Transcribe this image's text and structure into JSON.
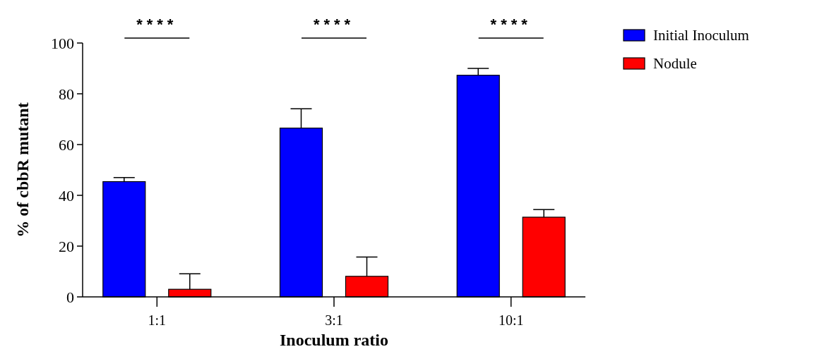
{
  "chart_data": {
    "type": "bar",
    "xlabel": "Inoculum ratio",
    "ylabel": "% of cbbR mutant",
    "categories": [
      "1:1",
      "3:1",
      "10:1"
    ],
    "series": [
      {
        "name": "Initial Inoculum",
        "color": "#0000ff",
        "values": [
          45.4,
          66.5,
          87.3
        ],
        "errors": [
          [
            45.4,
            47.0
          ],
          [
            66.5,
            74.1
          ],
          [
            87.3,
            90.0
          ]
        ]
      },
      {
        "name": "Nodule",
        "color": "#ff0000",
        "values": [
          3.0,
          8.1,
          31.4
        ],
        "errors": [
          [
            3.0,
            9.1
          ],
          [
            8.1,
            15.7
          ],
          [
            31.4,
            34.4
          ]
        ]
      }
    ],
    "ylim": [
      0,
      100
    ],
    "yticks": [
      0,
      20,
      40,
      60,
      80,
      100
    ],
    "legend": "top right",
    "annotations": [
      "****",
      "****",
      "****"
    ]
  }
}
